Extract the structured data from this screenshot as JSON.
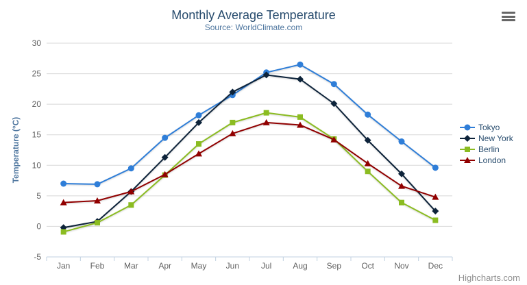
{
  "chart_data": {
    "type": "line",
    "title": "Monthly Average Temperature",
    "subtitle": "Source: WorldClimate.com",
    "categories": [
      "Jan",
      "Feb",
      "Mar",
      "Apr",
      "May",
      "Jun",
      "Jul",
      "Aug",
      "Sep",
      "Oct",
      "Nov",
      "Dec"
    ],
    "series": [
      {
        "name": "Tokyo",
        "color": "#2f7ed8",
        "marker": "circle",
        "values": [
          7.0,
          6.9,
          9.5,
          14.5,
          18.2,
          21.5,
          25.2,
          26.5,
          23.3,
          18.3,
          13.9,
          9.6
        ]
      },
      {
        "name": "New York",
        "color": "#0d233a",
        "marker": "diamond",
        "values": [
          -0.2,
          0.8,
          5.7,
          11.3,
          17.0,
          22.0,
          24.8,
          24.1,
          20.1,
          14.1,
          8.6,
          2.5
        ]
      },
      {
        "name": "Berlin",
        "color": "#8bbc21",
        "marker": "square",
        "values": [
          -0.9,
          0.6,
          3.5,
          8.4,
          13.5,
          17.0,
          18.6,
          17.9,
          14.3,
          9.0,
          3.9,
          1.0
        ]
      },
      {
        "name": "London",
        "color": "#910000",
        "marker": "triangle",
        "values": [
          3.9,
          4.2,
          5.7,
          8.5,
          11.9,
          15.2,
          17.0,
          16.6,
          14.2,
          10.3,
          6.6,
          4.8
        ]
      }
    ],
    "xlabel": "",
    "ylabel": "Temperature (°C)",
    "ylim": [
      -5,
      30
    ],
    "y_tick_interval": 5,
    "y_tick_labels": [
      "-5",
      "0",
      "5",
      "10",
      "15",
      "20",
      "25",
      "30"
    ],
    "grid": true,
    "legend_position": "right-middle-vertical"
  },
  "credits": "Highcharts.com",
  "icons": {
    "context_menu": "hamburger-icon"
  },
  "colors": {
    "title": "#274b6d",
    "subtitle": "#4d759e",
    "axis_title": "#4d759e",
    "tick_label": "#606060",
    "grid_line": "#d8d8d8",
    "axis_line": "#c0d0e0",
    "legend_text": "#274b6d",
    "credits": "#909090",
    "menu_icon": "#666666",
    "background": "#ffffff"
  }
}
